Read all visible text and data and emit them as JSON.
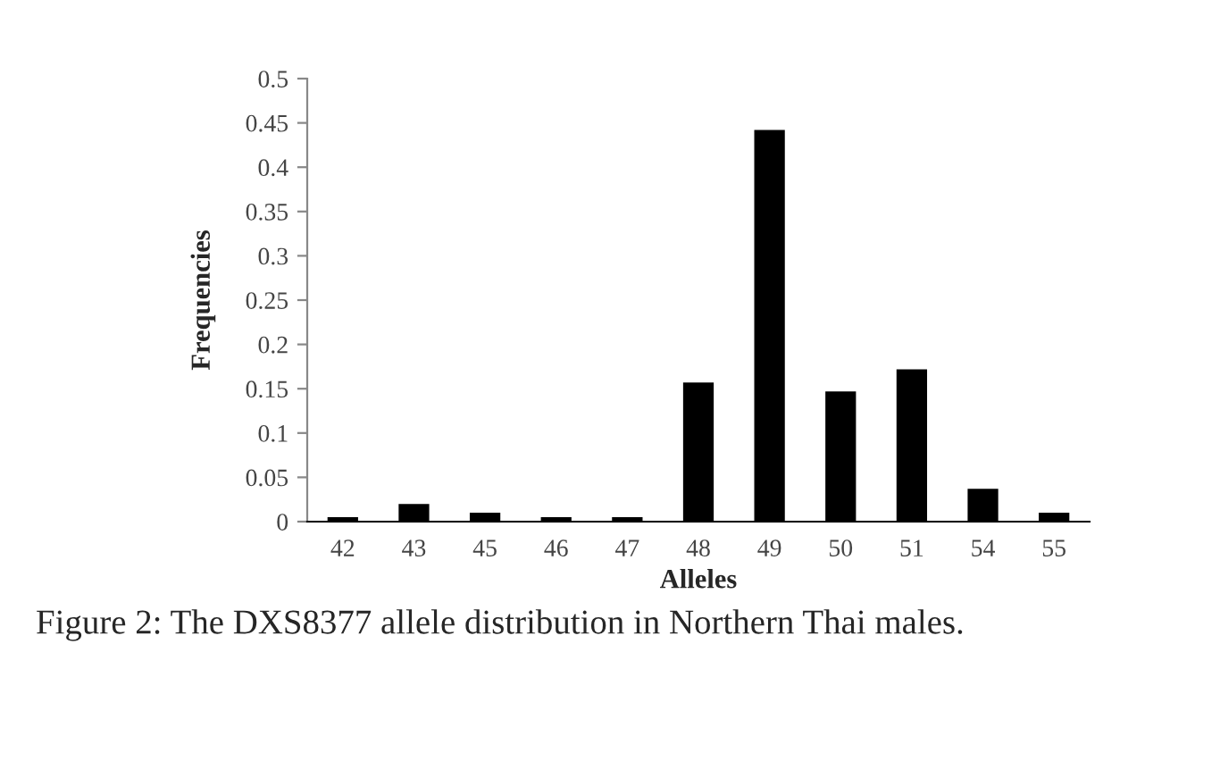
{
  "chart_data": {
    "type": "bar",
    "xlabel": "Alleles",
    "ylabel": "Frequencies",
    "categories": [
      "42",
      "43",
      "45",
      "46",
      "47",
      "48",
      "49",
      "50",
      "51",
      "54",
      "55"
    ],
    "values": [
      0.005,
      0.02,
      0.01,
      0.005,
      0.005,
      0.157,
      0.442,
      0.147,
      0.172,
      0.037,
      0.01
    ],
    "color": "#000000",
    "ylim": [
      0,
      0.5
    ],
    "yticks": [
      0,
      0.05,
      0.1,
      0.15,
      0.2,
      0.25,
      0.3,
      0.35,
      0.4,
      0.45,
      0.5
    ],
    "grid": false,
    "legend": false,
    "annotations": [
      "Figure 2: The DXS8377 allele distribution in Northern Thai males."
    ]
  }
}
